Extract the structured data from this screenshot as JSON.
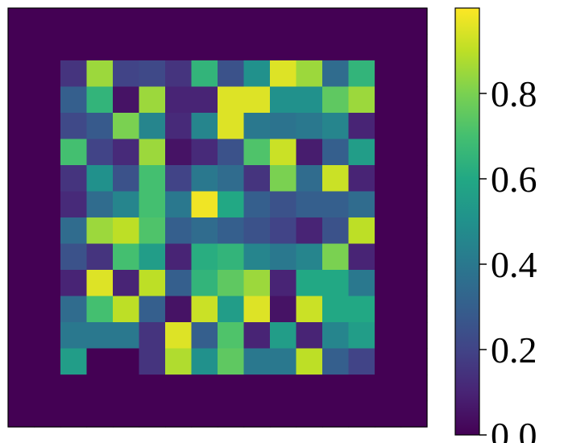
{
  "chart_data": {
    "type": "heatmap",
    "title": "",
    "xlabel": "",
    "ylabel": "",
    "grid": false,
    "colormap": "viridis",
    "colorbar": {
      "range": [
        0.0,
        1.0
      ],
      "ticks": [
        0.0,
        0.2,
        0.4,
        0.6,
        0.8
      ],
      "tick_labels": [
        "0.0",
        "0.2",
        "0.4",
        "0.6",
        "0.8"
      ],
      "placement": "right"
    },
    "shape": [
      16,
      16
    ],
    "values": [
      [
        0.0,
        0.0,
        0.0,
        0.0,
        0.0,
        0.0,
        0.0,
        0.0,
        0.0,
        0.0,
        0.0,
        0.0,
        0.0,
        0.0,
        0.0,
        0.0
      ],
      [
        0.0,
        0.0,
        0.0,
        0.0,
        0.0,
        0.0,
        0.0,
        0.0,
        0.0,
        0.0,
        0.0,
        0.0,
        0.0,
        0.0,
        0.0,
        0.0
      ],
      [
        0.0,
        0.0,
        0.15,
        0.85,
        0.2,
        0.22,
        0.15,
        0.65,
        0.25,
        0.5,
        0.95,
        0.85,
        0.35,
        0.65,
        0.0,
        0.0
      ],
      [
        0.0,
        0.0,
        0.3,
        0.65,
        0.05,
        0.85,
        0.1,
        0.1,
        0.95,
        0.95,
        0.5,
        0.5,
        0.75,
        0.85,
        0.0,
        0.0
      ],
      [
        0.0,
        0.0,
        0.22,
        0.28,
        0.8,
        0.45,
        0.12,
        0.45,
        0.95,
        0.4,
        0.38,
        0.4,
        0.45,
        0.1,
        0.0,
        0.0
      ],
      [
        0.0,
        0.0,
        0.7,
        0.2,
        0.12,
        0.85,
        0.05,
        0.12,
        0.25,
        0.72,
        0.92,
        0.08,
        0.3,
        0.55,
        0.0,
        0.0
      ],
      [
        0.0,
        0.0,
        0.15,
        0.5,
        0.25,
        0.7,
        0.2,
        0.4,
        0.35,
        0.15,
        0.8,
        0.35,
        0.92,
        0.1,
        0.0,
        0.0
      ],
      [
        0.0,
        0.0,
        0.12,
        0.35,
        0.45,
        0.7,
        0.4,
        0.98,
        0.6,
        0.3,
        0.25,
        0.3,
        0.3,
        0.35,
        0.0,
        0.0
      ],
      [
        0.0,
        0.0,
        0.35,
        0.85,
        0.9,
        0.72,
        0.3,
        0.35,
        0.3,
        0.25,
        0.2,
        0.1,
        0.25,
        0.9,
        0.0,
        0.0
      ],
      [
        0.0,
        0.0,
        0.25,
        0.15,
        0.7,
        0.55,
        0.1,
        0.62,
        0.65,
        0.45,
        0.4,
        0.45,
        0.8,
        0.1,
        0.0,
        0.0
      ],
      [
        0.0,
        0.0,
        0.1,
        0.95,
        0.1,
        0.9,
        0.3,
        0.65,
        0.75,
        0.85,
        0.1,
        0.6,
        0.6,
        0.4,
        0.0,
        0.0
      ],
      [
        0.0,
        0.0,
        0.35,
        0.7,
        0.9,
        0.3,
        0.05,
        0.92,
        0.55,
        0.95,
        0.05,
        0.92,
        0.6,
        0.6,
        0.0,
        0.0
      ],
      [
        0.0,
        0.0,
        0.4,
        0.4,
        0.4,
        0.15,
        0.95,
        0.3,
        0.72,
        0.1,
        0.55,
        0.1,
        0.45,
        0.55,
        0.0,
        0.0
      ],
      [
        0.0,
        0.0,
        0.55,
        0.0,
        0.0,
        0.15,
        0.88,
        0.5,
        0.75,
        0.4,
        0.4,
        0.9,
        0.3,
        0.2,
        0.0,
        0.0
      ],
      [
        0.0,
        0.0,
        0.0,
        0.0,
        0.0,
        0.0,
        0.0,
        0.0,
        0.0,
        0.0,
        0.0,
        0.0,
        0.0,
        0.0,
        0.0,
        0.0
      ],
      [
        0.0,
        0.0,
        0.0,
        0.0,
        0.0,
        0.0,
        0.0,
        0.0,
        0.0,
        0.0,
        0.0,
        0.0,
        0.0,
        0.0,
        0.0,
        0.0
      ]
    ]
  }
}
